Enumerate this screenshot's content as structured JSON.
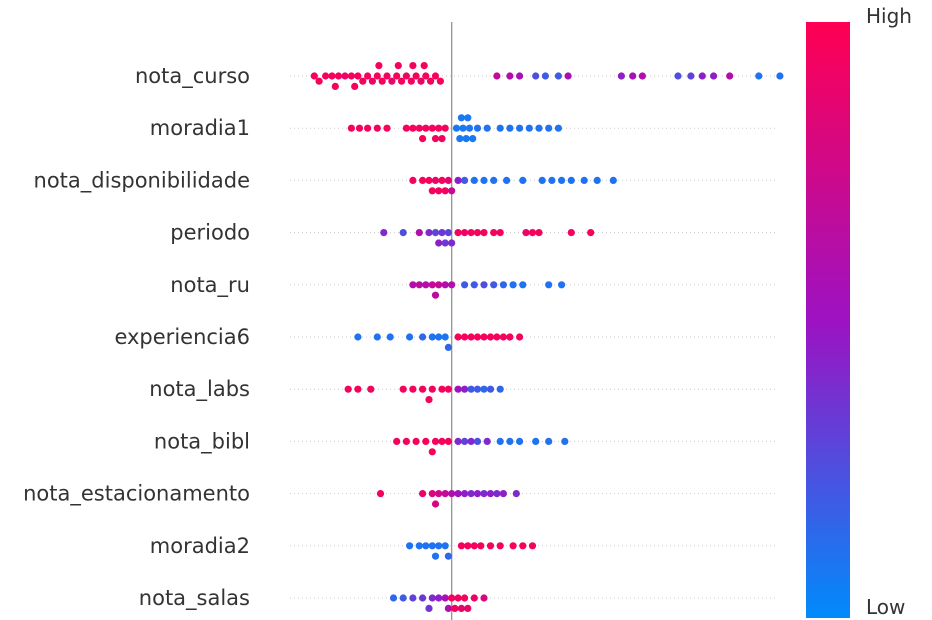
{
  "chart_data": {
    "type": "scatter",
    "subtype": "beeswarm",
    "features": [
      "nota_curso",
      "moradia1",
      "nota_disponibilidade",
      "periodo",
      "nota_ru",
      "experiencia6",
      "nota_labs",
      "nota_bibl",
      "nota_estacionamento",
      "moradia2",
      "nota_salas"
    ],
    "baseline_x": 0,
    "xlim": [
      -1.0,
      2.0
    ],
    "grid": false,
    "colorbar": {
      "high_label": "High",
      "low_label": "Low",
      "high_color": "#ff0052",
      "mid_color": "#9d12c2",
      "low_color": "#008bfb"
    },
    "series": [
      {
        "feature": "nota_curso",
        "points": [
          [
            -0.85,
            0.95
          ],
          [
            -0.82,
            0.95
          ],
          [
            -0.78,
            0.95
          ],
          [
            -0.74,
            0.95
          ],
          [
            -0.7,
            0.95
          ],
          [
            -0.66,
            0.92
          ],
          [
            -0.62,
            0.95
          ],
          [
            -0.58,
            0.95
          ],
          [
            -0.55,
            0.95
          ],
          [
            -0.52,
            0.95
          ],
          [
            -0.49,
            0.9
          ],
          [
            -0.46,
            0.95
          ],
          [
            -0.43,
            0.95
          ],
          [
            -0.4,
            0.95
          ],
          [
            -0.37,
            0.88
          ],
          [
            -0.34,
            0.95
          ],
          [
            -0.31,
            0.95
          ],
          [
            -0.28,
            0.92
          ],
          [
            -0.25,
            0.95
          ],
          [
            -0.22,
            0.95
          ],
          [
            -0.19,
            0.9
          ],
          [
            -0.16,
            0.95
          ],
          [
            -0.13,
            0.95
          ],
          [
            -0.1,
            0.95
          ],
          [
            -0.07,
            0.95
          ],
          [
            -0.72,
            0.95
          ],
          [
            -0.6,
            0.95
          ],
          [
            -0.45,
            0.95
          ],
          [
            -0.33,
            0.95
          ],
          [
            -0.24,
            0.95
          ],
          [
            -0.17,
            0.95
          ],
          [
            0.28,
            0.7
          ],
          [
            0.36,
            0.6
          ],
          [
            0.42,
            0.55
          ],
          [
            0.52,
            0.25
          ],
          [
            0.58,
            0.2
          ],
          [
            0.66,
            0.2
          ],
          [
            0.72,
            0.55
          ],
          [
            1.05,
            0.45
          ],
          [
            1.12,
            0.55
          ],
          [
            1.18,
            0.6
          ],
          [
            1.4,
            0.25
          ],
          [
            1.48,
            0.3
          ],
          [
            1.55,
            0.45
          ],
          [
            1.62,
            0.45
          ],
          [
            1.72,
            0.6
          ],
          [
            1.9,
            0.1
          ],
          [
            2.03,
            0.1
          ]
        ]
      },
      {
        "feature": "moradia1",
        "points": [
          [
            -0.62,
            0.95
          ],
          [
            -0.57,
            0.95
          ],
          [
            -0.52,
            0.95
          ],
          [
            -0.46,
            0.95
          ],
          [
            -0.4,
            0.95
          ],
          [
            -0.28,
            0.95
          ],
          [
            -0.24,
            0.95
          ],
          [
            -0.2,
            0.95
          ],
          [
            -0.16,
            0.95
          ],
          [
            -0.12,
            0.95
          ],
          [
            -0.08,
            0.95
          ],
          [
            -0.04,
            0.95
          ],
          [
            -0.18,
            0.95
          ],
          [
            -0.1,
            0.95
          ],
          [
            -0.06,
            0.95
          ],
          [
            0.03,
            0.08
          ],
          [
            0.05,
            0.08
          ],
          [
            0.07,
            0.08
          ],
          [
            0.09,
            0.08
          ],
          [
            0.11,
            0.08
          ],
          [
            0.13,
            0.08
          ],
          [
            0.06,
            0.08
          ],
          [
            0.1,
            0.08
          ],
          [
            0.16,
            0.1
          ],
          [
            0.22,
            0.1
          ],
          [
            0.3,
            0.1
          ],
          [
            0.36,
            0.1
          ],
          [
            0.42,
            0.1
          ],
          [
            0.48,
            0.1
          ],
          [
            0.54,
            0.1
          ],
          [
            0.6,
            0.1
          ],
          [
            0.66,
            0.1
          ]
        ]
      },
      {
        "feature": "nota_disponibilidade",
        "points": [
          [
            -0.24,
            0.95
          ],
          [
            -0.18,
            0.95
          ],
          [
            -0.14,
            0.95
          ],
          [
            -0.1,
            0.9
          ],
          [
            -0.06,
            0.95
          ],
          [
            -0.02,
            0.85
          ],
          [
            0.0,
            0.7
          ],
          [
            -0.12,
            0.95
          ],
          [
            -0.08,
            0.95
          ],
          [
            -0.04,
            0.95
          ],
          [
            0.04,
            0.45
          ],
          [
            0.08,
            0.2
          ],
          [
            0.14,
            0.1
          ],
          [
            0.2,
            0.1
          ],
          [
            0.26,
            0.1
          ],
          [
            0.34,
            0.1
          ],
          [
            0.44,
            0.1
          ],
          [
            0.56,
            0.1
          ],
          [
            0.62,
            0.1
          ],
          [
            0.68,
            0.1
          ],
          [
            0.74,
            0.1
          ],
          [
            0.82,
            0.1
          ],
          [
            0.9,
            0.1
          ],
          [
            1.0,
            0.1
          ]
        ]
      },
      {
        "feature": "periodo",
        "points": [
          [
            -0.42,
            0.4
          ],
          [
            -0.3,
            0.25
          ],
          [
            -0.2,
            0.6
          ],
          [
            -0.14,
            0.4
          ],
          [
            -0.1,
            0.3
          ],
          [
            -0.06,
            0.35
          ],
          [
            -0.02,
            0.3
          ],
          [
            0.0,
            0.4
          ],
          [
            -0.08,
            0.45
          ],
          [
            -0.04,
            0.35
          ],
          [
            0.04,
            0.95
          ],
          [
            0.08,
            0.9
          ],
          [
            0.12,
            0.95
          ],
          [
            0.16,
            0.95
          ],
          [
            0.2,
            0.95
          ],
          [
            0.26,
            0.95
          ],
          [
            0.3,
            0.95
          ],
          [
            0.46,
            0.9
          ],
          [
            0.5,
            0.95
          ],
          [
            0.54,
            0.95
          ],
          [
            0.74,
            0.95
          ],
          [
            0.86,
            0.95
          ]
        ]
      },
      {
        "feature": "nota_ru",
        "points": [
          [
            -0.24,
            0.6
          ],
          [
            -0.2,
            0.65
          ],
          [
            -0.16,
            0.6
          ],
          [
            -0.12,
            0.7
          ],
          [
            -0.08,
            0.7
          ],
          [
            -0.04,
            0.6
          ],
          [
            0.0,
            0.6
          ],
          [
            -0.1,
            0.65
          ],
          [
            0.08,
            0.2
          ],
          [
            0.14,
            0.2
          ],
          [
            0.2,
            0.25
          ],
          [
            0.26,
            0.2
          ],
          [
            0.32,
            0.15
          ],
          [
            0.38,
            0.1
          ],
          [
            0.44,
            0.1
          ],
          [
            0.6,
            0.1
          ],
          [
            0.68,
            0.1
          ]
        ]
      },
      {
        "feature": "experiencia6",
        "points": [
          [
            -0.58,
            0.1
          ],
          [
            -0.46,
            0.1
          ],
          [
            -0.38,
            0.1
          ],
          [
            -0.26,
            0.1
          ],
          [
            -0.18,
            0.15
          ],
          [
            -0.12,
            0.1
          ],
          [
            -0.08,
            0.1
          ],
          [
            -0.04,
            0.1
          ],
          [
            -0.02,
            0.15
          ],
          [
            0.04,
            0.95
          ],
          [
            0.08,
            0.95
          ],
          [
            0.12,
            0.95
          ],
          [
            0.16,
            0.95
          ],
          [
            0.2,
            0.95
          ],
          [
            0.24,
            0.95
          ],
          [
            0.28,
            0.95
          ],
          [
            0.32,
            0.95
          ],
          [
            0.36,
            0.95
          ],
          [
            0.42,
            0.95
          ]
        ]
      },
      {
        "feature": "nota_labs",
        "points": [
          [
            -0.64,
            0.95
          ],
          [
            -0.58,
            0.95
          ],
          [
            -0.5,
            0.95
          ],
          [
            -0.3,
            0.95
          ],
          [
            -0.24,
            0.95
          ],
          [
            -0.18,
            0.95
          ],
          [
            -0.12,
            0.95
          ],
          [
            -0.06,
            0.95
          ],
          [
            -0.02,
            0.95
          ],
          [
            -0.14,
            0.95
          ],
          [
            0.04,
            0.5
          ],
          [
            0.08,
            0.45
          ],
          [
            0.12,
            0.2
          ],
          [
            0.16,
            0.2
          ],
          [
            0.2,
            0.15
          ],
          [
            0.24,
            0.2
          ],
          [
            0.3,
            0.15
          ]
        ]
      },
      {
        "feature": "nota_bibl",
        "points": [
          [
            -0.34,
            0.95
          ],
          [
            -0.28,
            0.95
          ],
          [
            -0.22,
            0.95
          ],
          [
            -0.16,
            0.95
          ],
          [
            -0.1,
            0.95
          ],
          [
            -0.06,
            0.95
          ],
          [
            -0.02,
            0.95
          ],
          [
            -0.12,
            0.95
          ],
          [
            0.04,
            0.4
          ],
          [
            0.08,
            0.3
          ],
          [
            0.12,
            0.4
          ],
          [
            0.16,
            0.25
          ],
          [
            0.22,
            0.4
          ],
          [
            0.3,
            0.1
          ],
          [
            0.36,
            0.1
          ],
          [
            0.42,
            0.1
          ],
          [
            0.52,
            0.1
          ],
          [
            0.6,
            0.1
          ],
          [
            0.7,
            0.1
          ]
        ]
      },
      {
        "feature": "nota_estacionamento",
        "points": [
          [
            -0.44,
            0.95
          ],
          [
            -0.18,
            0.9
          ],
          [
            -0.12,
            0.8
          ],
          [
            -0.08,
            0.75
          ],
          [
            -0.04,
            0.7
          ],
          [
            0.0,
            0.6
          ],
          [
            -0.1,
            0.8
          ],
          [
            0.04,
            0.5
          ],
          [
            0.08,
            0.45
          ],
          [
            0.12,
            0.4
          ],
          [
            0.16,
            0.45
          ],
          [
            0.2,
            0.4
          ],
          [
            0.24,
            0.45
          ],
          [
            0.28,
            0.4
          ],
          [
            0.32,
            0.45
          ],
          [
            0.4,
            0.4
          ]
        ]
      },
      {
        "feature": "moradia2",
        "points": [
          [
            -0.26,
            0.1
          ],
          [
            -0.2,
            0.1
          ],
          [
            -0.16,
            0.1
          ],
          [
            -0.12,
            0.1
          ],
          [
            -0.08,
            0.1
          ],
          [
            -0.04,
            0.1
          ],
          [
            -0.02,
            0.15
          ],
          [
            -0.1,
            0.1
          ],
          [
            0.06,
            0.95
          ],
          [
            0.1,
            0.95
          ],
          [
            0.14,
            0.95
          ],
          [
            0.18,
            0.95
          ],
          [
            0.24,
            0.95
          ],
          [
            0.3,
            0.95
          ],
          [
            0.38,
            0.95
          ],
          [
            0.44,
            0.95
          ],
          [
            0.5,
            0.95
          ]
        ]
      },
      {
        "feature": "nota_salas",
        "points": [
          [
            -0.36,
            0.15
          ],
          [
            -0.3,
            0.2
          ],
          [
            -0.24,
            0.3
          ],
          [
            -0.18,
            0.35
          ],
          [
            -0.12,
            0.4
          ],
          [
            -0.08,
            0.45
          ],
          [
            -0.04,
            0.55
          ],
          [
            -0.02,
            0.6
          ],
          [
            -0.14,
            0.35
          ],
          [
            0.0,
            0.95
          ],
          [
            0.02,
            0.95
          ],
          [
            0.04,
            0.95
          ],
          [
            0.06,
            0.9
          ],
          [
            0.08,
            0.95
          ],
          [
            0.1,
            0.9
          ],
          [
            0.14,
            0.9
          ],
          [
            0.2,
            0.8
          ]
        ]
      }
    ]
  }
}
